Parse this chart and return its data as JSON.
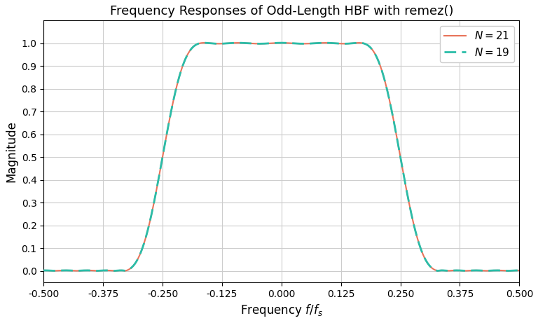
{
  "title": "Frequency Responses of Odd-Length HBF with remez()",
  "xlabel": "Frequency $f/f_s$",
  "ylabel": "Magnitude",
  "xlim": [
    -0.5,
    0.5
  ],
  "ylim": [
    -0.05,
    1.1
  ],
  "N21": 21,
  "N19": 19,
  "color_N21": "#E8735A",
  "color_N19": "#2ABDA8",
  "legend_N21": "$N = 21$",
  "legend_N19": "$N = 19$",
  "grid_color": "#cccccc",
  "background_color": "#ffffff",
  "xticks": [
    -0.5,
    -0.375,
    -0.25,
    -0.125,
    0.0,
    0.125,
    0.25,
    0.375,
    0.5
  ],
  "yticks": [
    0.0,
    0.1,
    0.2,
    0.3,
    0.4,
    0.5,
    0.6,
    0.7,
    0.8,
    0.9,
    1.0
  ],
  "nfft": 4096,
  "passband_edge": 0.175,
  "stopband_edge": 0.325
}
